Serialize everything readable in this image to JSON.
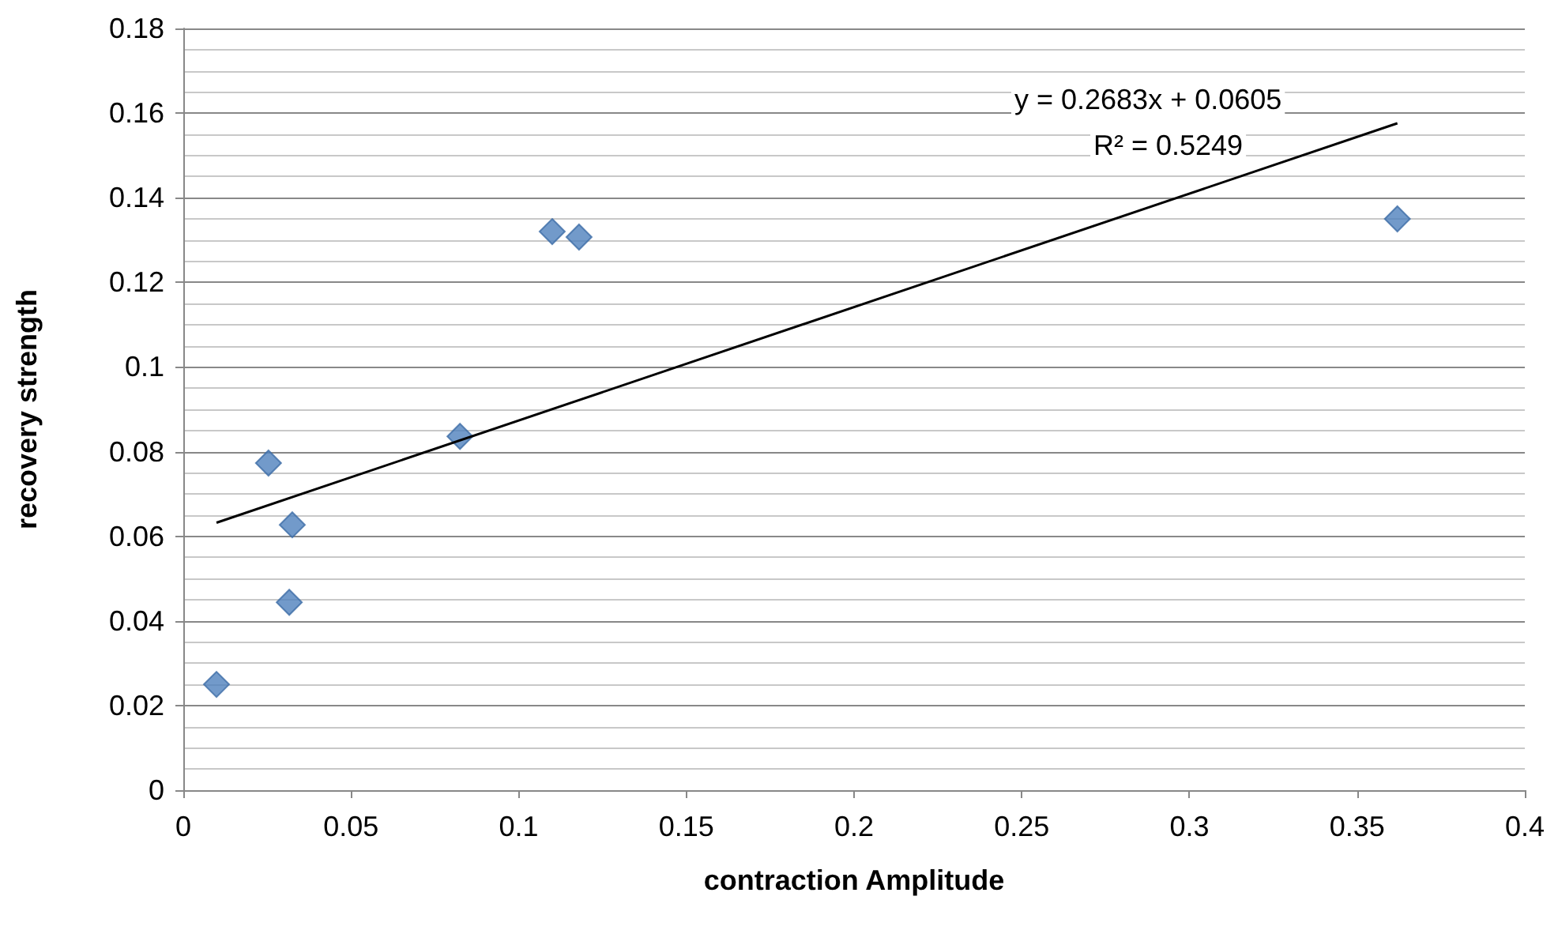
{
  "chart_data": {
    "type": "scatter",
    "xlabel": "contraction Amplitude",
    "ylabel": "recovery strength",
    "annotations": [
      "y = 0.2683x + 0.0605",
      "R² = 0.5249"
    ],
    "series": [
      {
        "color": "#4f81bd",
        "x": [
          0.0099,
          0.0254,
          0.0325,
          0.0316,
          0.0825,
          0.11,
          0.118,
          0.362
        ],
        "values": [
          0.025,
          0.0773,
          0.0627,
          0.0444,
          0.0836,
          0.132,
          0.1307,
          0.135
        ]
      },
      {
        "type": "line",
        "color": "#000000",
        "marker": "none",
        "x": [
          0.0099,
          0.362
        ],
        "values": [
          0.0632,
          0.1576
        ]
      }
    ],
    "xlim": [
      0,
      0.4
    ],
    "xticks": [
      0,
      0.05,
      0.1,
      0.15,
      0.2,
      0.25,
      0.3,
      0.35,
      0.4
    ],
    "ylim": [
      0,
      0.18
    ],
    "yticks": [
      0,
      0.02,
      0.04,
      0.06,
      0.08,
      0.1,
      0.12,
      0.14,
      0.16,
      0.18
    ],
    "grid": "y",
    "marker": "diamond"
  }
}
